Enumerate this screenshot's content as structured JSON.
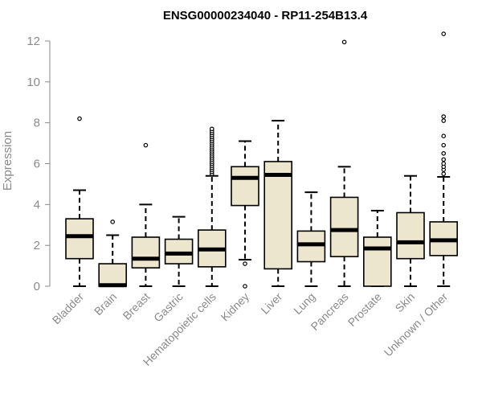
{
  "chart_data": {
    "type": "boxplot",
    "title": "ENSG00000234040 - RP11-254B13.4",
    "xlabel": "",
    "ylabel": "Expression",
    "ylim": [
      0,
      12.5
    ],
    "yticks": [
      0,
      2,
      4,
      6,
      8,
      10,
      12
    ],
    "box_fill": "#ede6cf",
    "box_stroke": "#000000",
    "categories": [
      "Bladder",
      "Brain",
      "Breast",
      "Gastric",
      "Hematopoietic cells",
      "Kidney",
      "Liver",
      "Lung",
      "Pancreas",
      "Prostate",
      "Skin",
      "Unknown / Other"
    ],
    "boxes": [
      {
        "whisker_low": 0,
        "q1": 1.35,
        "median": 2.45,
        "q3": 3.3,
        "whisker_high": 4.7,
        "outliers": [
          8.2
        ]
      },
      {
        "whisker_low": 0,
        "q1": 0,
        "median": 0.05,
        "q3": 1.1,
        "whisker_high": 2.5,
        "outliers": [
          3.15
        ]
      },
      {
        "whisker_low": 0,
        "q1": 0.9,
        "median": 1.35,
        "q3": 2.4,
        "whisker_high": 4.0,
        "outliers": [
          6.9
        ]
      },
      {
        "whisker_low": 0,
        "q1": 1.1,
        "median": 1.6,
        "q3": 2.3,
        "whisker_high": 3.4,
        "outliers": []
      },
      {
        "whisker_low": 0,
        "q1": 0.95,
        "median": 1.8,
        "q3": 2.75,
        "whisker_high": 5.4,
        "outliers": [
          5.5,
          5.6,
          5.7,
          5.8,
          5.9,
          6.0,
          6.1,
          6.2,
          6.3,
          6.4,
          6.5,
          6.6,
          6.7,
          6.8,
          6.9,
          7.0,
          7.1,
          7.2,
          7.3,
          7.4,
          7.5,
          7.6,
          7.7
        ]
      },
      {
        "whisker_low": 1.3,
        "q1": 3.95,
        "median": 5.3,
        "q3": 5.85,
        "whisker_high": 7.1,
        "outliers": [
          1.1,
          0.0
        ]
      },
      {
        "whisker_low": 0,
        "q1": 0.85,
        "median": 5.45,
        "q3": 6.1,
        "whisker_high": 8.1,
        "outliers": []
      },
      {
        "whisker_low": 0,
        "q1": 1.2,
        "median": 2.05,
        "q3": 2.7,
        "whisker_high": 4.6,
        "outliers": []
      },
      {
        "whisker_low": 0,
        "q1": 1.45,
        "median": 2.75,
        "q3": 4.35,
        "whisker_high": 5.85,
        "outliers": [
          11.95
        ]
      },
      {
        "whisker_low": 0,
        "q1": 0,
        "median": 1.85,
        "q3": 2.4,
        "whisker_high": 3.7,
        "outliers": []
      },
      {
        "whisker_low": 0,
        "q1": 1.35,
        "median": 2.15,
        "q3": 3.6,
        "whisker_high": 5.4,
        "outliers": []
      },
      {
        "whisker_low": 0,
        "q1": 1.5,
        "median": 2.25,
        "q3": 3.15,
        "whisker_high": 5.35,
        "outliers": [
          5.5,
          5.7,
          5.85,
          6.0,
          6.2,
          6.5,
          6.9,
          7.35,
          8.1,
          8.3,
          12.35
        ]
      }
    ]
  }
}
